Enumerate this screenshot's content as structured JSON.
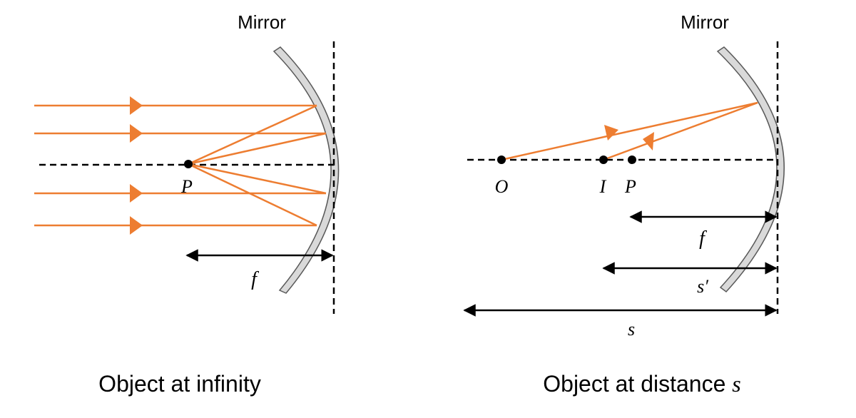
{
  "colors": {
    "ray": "#ED7D31",
    "axis": "#000000",
    "mirror_fill": "#D9D9D9",
    "mirror_stroke": "#595959"
  },
  "left_panel": {
    "mirror_label": "Mirror",
    "focal_point_label": "P",
    "focal_length_label": "f",
    "caption": "Object at infinity"
  },
  "right_panel": {
    "mirror_label": "Mirror",
    "object_label": "O",
    "image_label": "I",
    "focal_point_label": "P",
    "focal_length_label": "f",
    "image_distance_label": "s′",
    "object_distance_label": "s",
    "caption_text": "Object at distance ",
    "caption_var": "s"
  }
}
